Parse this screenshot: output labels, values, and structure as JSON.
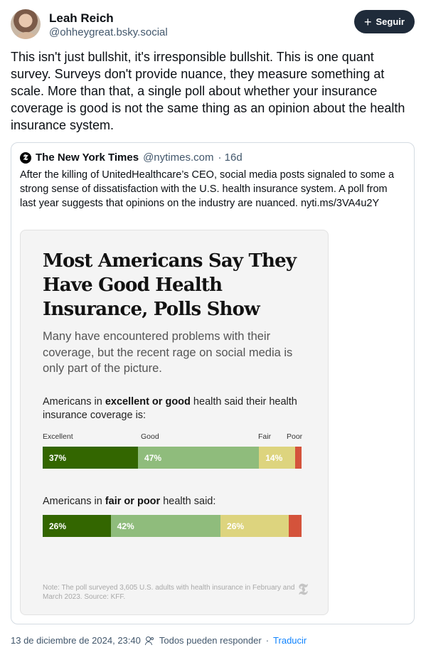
{
  "author": {
    "name": "Leah Reich",
    "handle": "@ohheygreat.bsky.social",
    "follow_label": "Seguir"
  },
  "post": {
    "text": "This isn't just bullshit, it's irresponsible bullshit. This is one quant survey. Surveys don't provide nuance, they measure something at scale. More than that, a single poll about whether your insurance coverage is good is not the same thing as an opinion about the health insurance system."
  },
  "quote": {
    "author_name": "The New York Times",
    "author_handle": "@nytimes.com",
    "age": "· 16d",
    "logo_glyph": "𝕿",
    "text": "After the killing of UnitedHealthcare’s CEO, social media posts signaled to some a strong sense of dissatisfaction with the U.S. health insurance system. A poll from last year suggests that opinions on the industry are nuanced. nyti.ms/3VA4u2Y"
  },
  "chart_card": {
    "title": "Most Americans Say They Have Good Health Insurance, Polls Show",
    "subtitle": "Many have encountered problems with their coverage, but the recent rage on social media is only part of the picture.",
    "section1_pre": "Americans in ",
    "section1_bold": "excellent or good",
    "section1_post": " health said their health insurance coverage is:",
    "section2_pre": "Americans in ",
    "section2_bold": "fair or poor",
    "section2_post": " health said:",
    "note": "Note: The poll surveyed 3,605 U.S. adults with health insurance in February and March 2023. Source: KFF.",
    "mark_glyph": "𝕿"
  },
  "chart_data": {
    "type": "bar",
    "orientation": "horizontal-stacked",
    "categories": [
      "Excellent",
      "Good",
      "Fair",
      "Poor"
    ],
    "colors": [
      "#336600",
      "#8fbc7c",
      "#ddd47e",
      "#d4533b"
    ],
    "series": [
      {
        "values": [
          37,
          47,
          14,
          2
        ],
        "labels": [
          "37%",
          "47%",
          "14%",
          ""
        ]
      },
      {
        "values": [
          26,
          42,
          26,
          5
        ],
        "labels": [
          "26%",
          "42%",
          "26%",
          ""
        ]
      }
    ]
  },
  "footer": {
    "timestamp": "13 de diciembre de 2024, 23:40",
    "reply_setting": "Todos pueden responder",
    "separator": "·",
    "translate_label": "Traducir"
  }
}
